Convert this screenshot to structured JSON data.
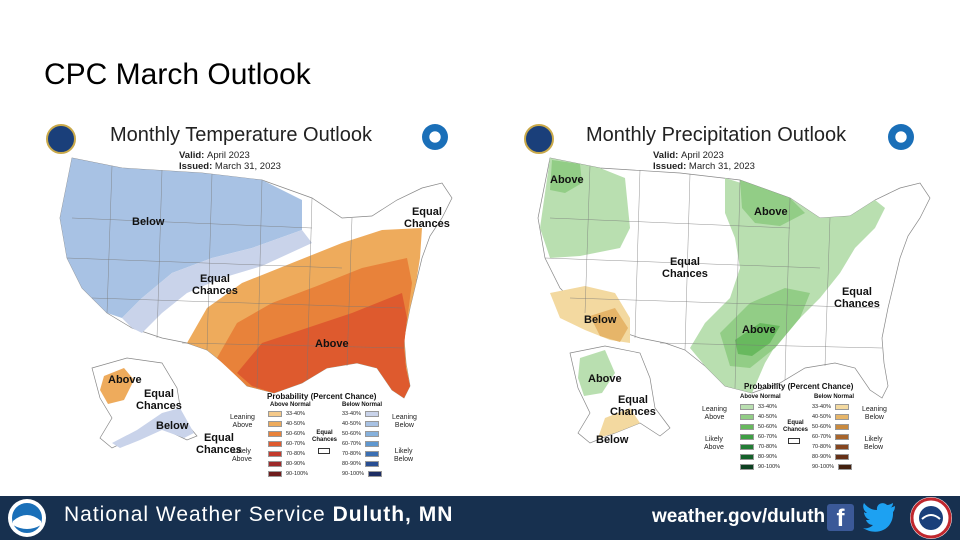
{
  "slide": {
    "title": "CPC March Outlook"
  },
  "temperature_map": {
    "title": "Monthly Temperature Outlook",
    "valid_label": "Valid:",
    "valid_value": "April 2023",
    "issued_label": "Issued:",
    "issued_value": "March 31, 2023",
    "region_labels": {
      "below": "Below",
      "equal_chances_center": "Equal\nChances",
      "equal_chances_ne": "Equal\nChances",
      "above": "Above",
      "ak_above": "Above",
      "ak_equal_chances": "Equal\nChances",
      "ak_below": "Below",
      "ak_equal_chances_2": "Equal\nChances"
    }
  },
  "precipitation_map": {
    "title": "Monthly Precipitation Outlook",
    "valid_label": "Valid:",
    "valid_value": "April 2023",
    "issued_label": "Issued:",
    "issued_value": "March 31, 2023",
    "region_labels": {
      "above_nw": "Above",
      "above_gl": "Above",
      "equal_chances_center": "Equal\nChances",
      "equal_chances_east": "Equal\nChances",
      "below_sw": "Below",
      "above_south": "Above",
      "ak_above": "Above",
      "ak_equal_chances": "Equal\nChances",
      "ak_below": "Below"
    }
  },
  "legend": {
    "title": "Probability (Percent Chance)",
    "above_normal": "Above Normal",
    "below_normal": "Below Normal",
    "ranges": [
      "33-40%",
      "40-50%",
      "50-60%",
      "60-70%",
      "70-80%",
      "80-90%",
      "90-100%"
    ],
    "leaning_above": "Leaning\nAbove",
    "likely_above": "Likely\nAbove",
    "leaning_below": "Leaning\nBelow",
    "likely_below": "Likely\nBelow",
    "equal_chances": "Equal\nChances"
  },
  "colors": {
    "temp_above": [
      "#f4c98a",
      "#eeab5c",
      "#e8823a",
      "#de5a2e",
      "#c23a2c",
      "#9c2a2a",
      "#6e1c1c"
    ],
    "temp_below": [
      "#c9d3ea",
      "#a8c2e4",
      "#86b1dc",
      "#5f97cf",
      "#3b6fb3",
      "#284e92",
      "#1d2d63"
    ],
    "precip_above": [
      "#b9dfb0",
      "#92cd86",
      "#68b95e",
      "#3f9f44",
      "#237d35",
      "#15612a",
      "#0c4020"
    ],
    "precip_below": [
      "#f3d9a0",
      "#e6b569",
      "#c98a3f",
      "#a8652c",
      "#85451f",
      "#653016",
      "#42200e"
    ]
  },
  "footer": {
    "org_prefix": "National Weather Service",
    "org_office": "Duluth, MN",
    "url": "weather.gov/duluth",
    "facebook_icon": "f"
  }
}
